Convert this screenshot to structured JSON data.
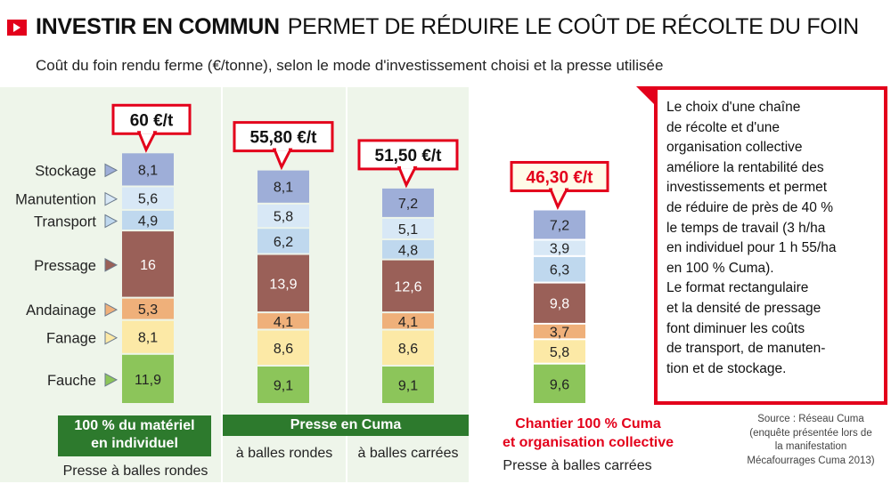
{
  "title": {
    "bold": "INVESTIR EN COMMUN",
    "rest": "PERMET DE RÉDUIRE LE COÛT DE RÉCOLTE DU FOIN"
  },
  "subtitle": "Coût du foin rendu ferme (€/tonne), selon le mode d'investissement choisi et la presse utilisée",
  "colors": {
    "panel_bg": "#eef5ea",
    "accent_red": "#e3001b",
    "group_green": "#2d7a2d",
    "callout_bg": "#ffffff",
    "callout_accent_bg": "#fffbe8"
  },
  "chart_data": {
    "type": "bar",
    "stacked": true,
    "unit": "€/t",
    "segment_order": [
      "Fauche",
      "Fanage",
      "Andainage",
      "Pressage",
      "Transport",
      "Manutention",
      "Stockage"
    ],
    "segment_colors": {
      "Fauche": "#8cc55a",
      "Fanage": "#fce9a6",
      "Andainage": "#efb07a",
      "Pressage": "#9a6058",
      "Transport": "#bfd8ee",
      "Manutention": "#d8e8f6",
      "Stockage": "#9eaed8"
    },
    "stacks": [
      {
        "total_label": "60 €/t",
        "values": {
          "Fauche": 11.9,
          "Fanage": 8.1,
          "Andainage": 5.3,
          "Pressage": 16,
          "Transport": 4.9,
          "Manutention": 5.6,
          "Stockage": 8.1
        },
        "labels": {
          "Fauche": "11,9",
          "Fanage": "8,1",
          "Andainage": "5,3",
          "Pressage": "16",
          "Transport": "4,9",
          "Manutention": "5,6",
          "Stockage": "8,1"
        }
      },
      {
        "total_label": "55,80 €/t",
        "values": {
          "Fauche": 9.1,
          "Fanage": 8.6,
          "Andainage": 4.1,
          "Pressage": 13.9,
          "Transport": 6.2,
          "Manutention": 5.8,
          "Stockage": 8.1
        },
        "labels": {
          "Fauche": "9,1",
          "Fanage": "8,6",
          "Andainage": "4,1",
          "Pressage": "13,9",
          "Transport": "6,2",
          "Manutention": "5,8",
          "Stockage": "8,1"
        }
      },
      {
        "total_label": "51,50 €/t",
        "values": {
          "Fauche": 9.1,
          "Fanage": 8.6,
          "Andainage": 4.1,
          "Pressage": 12.6,
          "Transport": 4.8,
          "Manutention": 5.1,
          "Stockage": 7.2
        },
        "labels": {
          "Fauche": "9,1",
          "Fanage": "8,6",
          "Andainage": "4,1",
          "Pressage": "12,6",
          "Transport": "4,8",
          "Manutention": "5,1",
          "Stockage": "7,2"
        }
      },
      {
        "total_label": "46,30 €/t",
        "values": {
          "Fauche": 9.6,
          "Fanage": 5.8,
          "Andainage": 3.7,
          "Pressage": 9.8,
          "Transport": 6.3,
          "Manutention": 3.9,
          "Stockage": 7.2
        },
        "labels": {
          "Fauche": "9,6",
          "Fanage": "5,8",
          "Andainage": "3,7",
          "Pressage": "9,8",
          "Transport": "6,3",
          "Manutention": "3,9",
          "Stockage": "7,2"
        },
        "highlight": true
      }
    ]
  },
  "groups": {
    "individual": {
      "label_line1": "100 % du matériel",
      "label_line2": "en individuel",
      "press": "Presse à balles rondes"
    },
    "cuma": {
      "label": "Presse en Cuma",
      "press_round": "à balles rondes",
      "press_square": "à balles carrées"
    },
    "full_cuma": {
      "label_line1": "Chantier 100 % Cuma",
      "label_line2": "et organisation collective",
      "press": "Presse à balles carrées"
    }
  },
  "note": {
    "lines": [
      "Le choix d'une chaîne",
      "de récolte et d'une",
      "organisation collective",
      "améliore la rentabilité des",
      "investissements et permet",
      "de réduire de près de 40 %",
      "le temps de travail (3 h/ha",
      "en individuel pour 1 h 55/ha",
      "en 100 % Cuma).",
      "Le format rectangulaire",
      "et la densité de pressage",
      "font diminuer les coûts",
      "de transport, de manuten-",
      "tion et de stockage."
    ]
  },
  "source": {
    "line1": "Source : Réseau Cuma",
    "line2": "(enquête présentée lors de",
    "line3": "la manifestation",
    "line4": "Mécafourrages Cuma 2013)"
  }
}
